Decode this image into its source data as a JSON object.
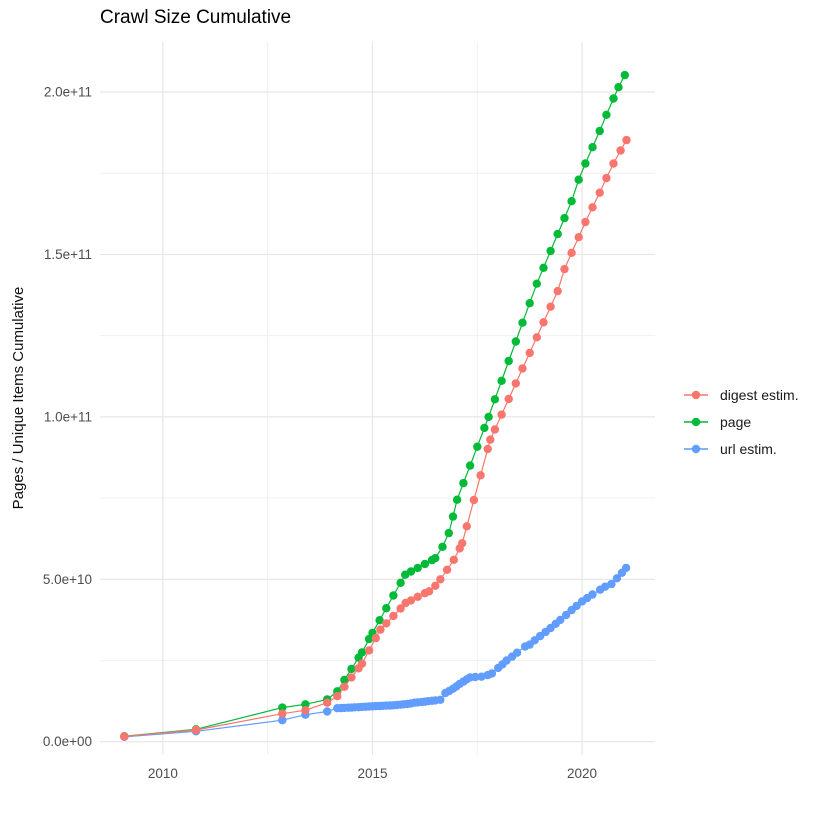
{
  "chart_data": {
    "type": "line",
    "title": "Crawl Size Cumulative",
    "xlabel": "",
    "ylabel": "Pages / Unique Items Cumulative",
    "grid": "on",
    "legend_position": "right",
    "x_domain": [
      2008.5,
      2021.74
    ],
    "y_domain": [
      -4100000000.0,
      215400000000.0
    ],
    "x_ticks": {
      "values": [
        2010,
        2015,
        2020
      ],
      "labels": [
        "2010",
        "2015",
        "2020"
      ]
    },
    "x_minor": [
      2012.5,
      2017.5
    ],
    "y_ticks": {
      "values": [
        0,
        50000000000.0,
        100000000000.0,
        150000000000.0,
        200000000000.0
      ],
      "labels": [
        "0.0e+00",
        "5.0e+10",
        "1.0e+11",
        "1.5e+11",
        "2.0e+11"
      ]
    },
    "y_minor": [
      25000000000.0,
      75000000000.0,
      125000000000.0,
      175000000000.0
    ],
    "series": [
      {
        "name": "digest estim.",
        "color": "#F8766D",
        "points": [
          [
            2009.08,
            1600000000.0
          ],
          [
            2010.79,
            3600000000.0
          ],
          [
            2012.85,
            8600000000.0
          ],
          [
            2013.4,
            9700000000.0
          ],
          [
            2013.92,
            12000000000.0
          ],
          [
            2014.16,
            14000000000.0
          ],
          [
            2014.33,
            16900000000.0
          ],
          [
            2014.5,
            19800000000.0
          ],
          [
            2014.67,
            22600000000.0
          ],
          [
            2014.75,
            24000000000.0
          ],
          [
            2014.92,
            28100000000.0
          ],
          [
            2015.08,
            31900000000.0
          ],
          [
            2015.19,
            34500000000.0
          ],
          [
            2015.33,
            36400000000.0
          ],
          [
            2015.5,
            38700000000.0
          ],
          [
            2015.67,
            41000000000.0
          ],
          [
            2015.79,
            42700000000.0
          ],
          [
            2015.92,
            43500000000.0
          ],
          [
            2016.08,
            44600000000.0
          ],
          [
            2016.25,
            45700000000.0
          ],
          [
            2016.35,
            46300000000.0
          ],
          [
            2016.5,
            48000000000.0
          ],
          [
            2016.62,
            50000000000.0
          ],
          [
            2016.78,
            52900000000.0
          ],
          [
            2016.94,
            56000000000.0
          ],
          [
            2017.08,
            59500000000.0
          ],
          [
            2017.14,
            61100000000.0
          ],
          [
            2017.25,
            66300000000.0
          ],
          [
            2017.42,
            74400000000.0
          ],
          [
            2017.58,
            82000000000.0
          ],
          [
            2017.75,
            90100000000.0
          ],
          [
            2017.81,
            93000000000.0
          ],
          [
            2017.92,
            96100000000.0
          ],
          [
            2018.08,
            100700000000.0
          ],
          [
            2018.25,
            105500000000.0
          ],
          [
            2018.42,
            110300000000.0
          ],
          [
            2018.58,
            114900000000.0
          ],
          [
            2018.75,
            119700000000.0
          ],
          [
            2018.92,
            124500000000.0
          ],
          [
            2019.08,
            129100000000.0
          ],
          [
            2019.25,
            133900000000.0
          ],
          [
            2019.42,
            138700000000.0
          ],
          [
            2019.58,
            145500000000.0
          ],
          [
            2019.75,
            150500000000.0
          ],
          [
            2019.92,
            155300000000.0
          ],
          [
            2020.08,
            160000000000.0
          ],
          [
            2020.25,
            164500000000.0
          ],
          [
            2020.42,
            169000000000.0
          ],
          [
            2020.58,
            173500000000.0
          ],
          [
            2020.75,
            178000000000.0
          ],
          [
            2020.92,
            182000000000.0
          ],
          [
            2021.06,
            185200000000.0
          ]
        ]
      },
      {
        "name": "page",
        "color": "#00BA38",
        "points": [
          [
            2009.08,
            1700000000.0
          ],
          [
            2010.79,
            3800000000.0
          ],
          [
            2012.85,
            10500000000.0
          ],
          [
            2013.4,
            11500000000.0
          ],
          [
            2013.92,
            13000000000.0
          ],
          [
            2014.16,
            15500000000.0
          ],
          [
            2014.33,
            19000000000.0
          ],
          [
            2014.5,
            22400000000.0
          ],
          [
            2014.67,
            25900000000.0
          ],
          [
            2014.75,
            27500000000.0
          ],
          [
            2014.92,
            31600000000.0
          ],
          [
            2015.0,
            33500000000.0
          ],
          [
            2015.17,
            37400000000.0
          ],
          [
            2015.33,
            41100000000.0
          ],
          [
            2015.5,
            45000000000.0
          ],
          [
            2015.67,
            48900000000.0
          ],
          [
            2015.78,
            51400000000.0
          ],
          [
            2015.92,
            52400000000.0
          ],
          [
            2016.08,
            53500000000.0
          ],
          [
            2016.25,
            54700000000.0
          ],
          [
            2016.42,
            55900000000.0
          ],
          [
            2016.5,
            56500000000.0
          ],
          [
            2016.67,
            60000000000.0
          ],
          [
            2016.82,
            64200000000.0
          ],
          [
            2016.92,
            69300000000.0
          ],
          [
            2017.02,
            74500000000.0
          ],
          [
            2017.17,
            79600000000.0
          ],
          [
            2017.33,
            85000000000.0
          ],
          [
            2017.5,
            90800000000.0
          ],
          [
            2017.67,
            96600000000.0
          ],
          [
            2017.77,
            100000000000.0
          ],
          [
            2017.92,
            105400000000.0
          ],
          [
            2018.08,
            111100000000.0
          ],
          [
            2018.25,
            117200000000.0
          ],
          [
            2018.42,
            123200000000.0
          ],
          [
            2018.58,
            129000000000.0
          ],
          [
            2018.75,
            135000000000.0
          ],
          [
            2018.92,
            141000000000.0
          ],
          [
            2019.08,
            145900000000.0
          ],
          [
            2019.25,
            151100000000.0
          ],
          [
            2019.42,
            156300000000.0
          ],
          [
            2019.58,
            161200000000.0
          ],
          [
            2019.75,
            166400000000.0
          ],
          [
            2019.92,
            173000000000.0
          ],
          [
            2020.08,
            178000000000.0
          ],
          [
            2020.25,
            183000000000.0
          ],
          [
            2020.42,
            188000000000.0
          ],
          [
            2020.58,
            193000000000.0
          ],
          [
            2020.75,
            198000000000.0
          ],
          [
            2020.87,
            201500000000.0
          ],
          [
            2021.02,
            205200000000.0
          ]
        ]
      },
      {
        "name": "url estim.",
        "color": "#619CFF",
        "points": [
          [
            2009.08,
            1500000000.0
          ],
          [
            2010.79,
            3200000000.0
          ],
          [
            2012.85,
            6600000000.0
          ],
          [
            2013.4,
            8300000000.0
          ],
          [
            2013.92,
            9300000000.0
          ],
          [
            2014.16,
            10300000000.0
          ],
          [
            2014.25,
            10350000000.0
          ],
          [
            2014.33,
            10400000000.0
          ],
          [
            2014.42,
            10450000000.0
          ],
          [
            2014.5,
            10500000000.0
          ],
          [
            2014.58,
            10570000000.0
          ],
          [
            2014.67,
            10630000000.0
          ],
          [
            2014.75,
            10700000000.0
          ],
          [
            2014.83,
            10750000000.0
          ],
          [
            2014.92,
            10820000000.0
          ],
          [
            2015.0,
            10900000000.0
          ],
          [
            2015.08,
            10950000000.0
          ],
          [
            2015.17,
            11000000000.0
          ],
          [
            2015.25,
            11050000000.0
          ],
          [
            2015.33,
            11100000000.0
          ],
          [
            2015.42,
            11150000000.0
          ],
          [
            2015.5,
            11200000000.0
          ],
          [
            2015.58,
            11300000000.0
          ],
          [
            2015.67,
            11400000000.0
          ],
          [
            2015.75,
            11500000000.0
          ],
          [
            2015.83,
            11600000000.0
          ],
          [
            2015.92,
            11800000000.0
          ],
          [
            2016.0,
            12000000000.0
          ],
          [
            2016.08,
            12100000000.0
          ],
          [
            2016.17,
            12200000000.0
          ],
          [
            2016.25,
            12300000000.0
          ],
          [
            2016.33,
            12450000000.0
          ],
          [
            2016.42,
            12600000000.0
          ],
          [
            2016.5,
            12700000000.0
          ],
          [
            2016.62,
            12900000000.0
          ],
          [
            2016.74,
            15000000000.0
          ],
          [
            2016.83,
            15600000000.0
          ],
          [
            2016.92,
            16300000000.0
          ],
          [
            2017.0,
            17000000000.0
          ],
          [
            2017.08,
            17800000000.0
          ],
          [
            2017.17,
            18500000000.0
          ],
          [
            2017.25,
            19200000000.0
          ],
          [
            2017.33,
            19800000000.0
          ],
          [
            2017.45,
            19900000000.0
          ],
          [
            2017.6,
            20000000000.0
          ],
          [
            2017.75,
            20500000000.0
          ],
          [
            2017.85,
            21000000000.0
          ],
          [
            2018.0,
            22700000000.0
          ],
          [
            2018.1,
            23800000000.0
          ],
          [
            2018.2,
            25000000000.0
          ],
          [
            2018.33,
            26200000000.0
          ],
          [
            2018.45,
            27400000000.0
          ],
          [
            2018.64,
            29300000000.0
          ],
          [
            2018.75,
            29900000000.0
          ],
          [
            2018.87,
            31200000000.0
          ],
          [
            2019.0,
            32500000000.0
          ],
          [
            2019.13,
            33800000000.0
          ],
          [
            2019.25,
            35000000000.0
          ],
          [
            2019.37,
            36300000000.0
          ],
          [
            2019.48,
            37500000000.0
          ],
          [
            2019.62,
            39000000000.0
          ],
          [
            2019.75,
            40500000000.0
          ],
          [
            2019.87,
            41800000000.0
          ],
          [
            2020.0,
            43200000000.0
          ],
          [
            2020.12,
            44200000000.0
          ],
          [
            2020.25,
            45300000000.0
          ],
          [
            2020.43,
            46800000000.0
          ],
          [
            2020.55,
            47700000000.0
          ],
          [
            2020.7,
            48500000000.0
          ],
          [
            2020.83,
            50300000000.0
          ],
          [
            2020.95,
            52000000000.0
          ],
          [
            2021.05,
            53500000000.0
          ]
        ]
      }
    ],
    "style": {
      "grid_major_color": "#E6E6E6",
      "grid_minor_color": "#F0F0F0",
      "tick_label_color": "#4D4D4D",
      "point_radius": 4.2
    }
  }
}
